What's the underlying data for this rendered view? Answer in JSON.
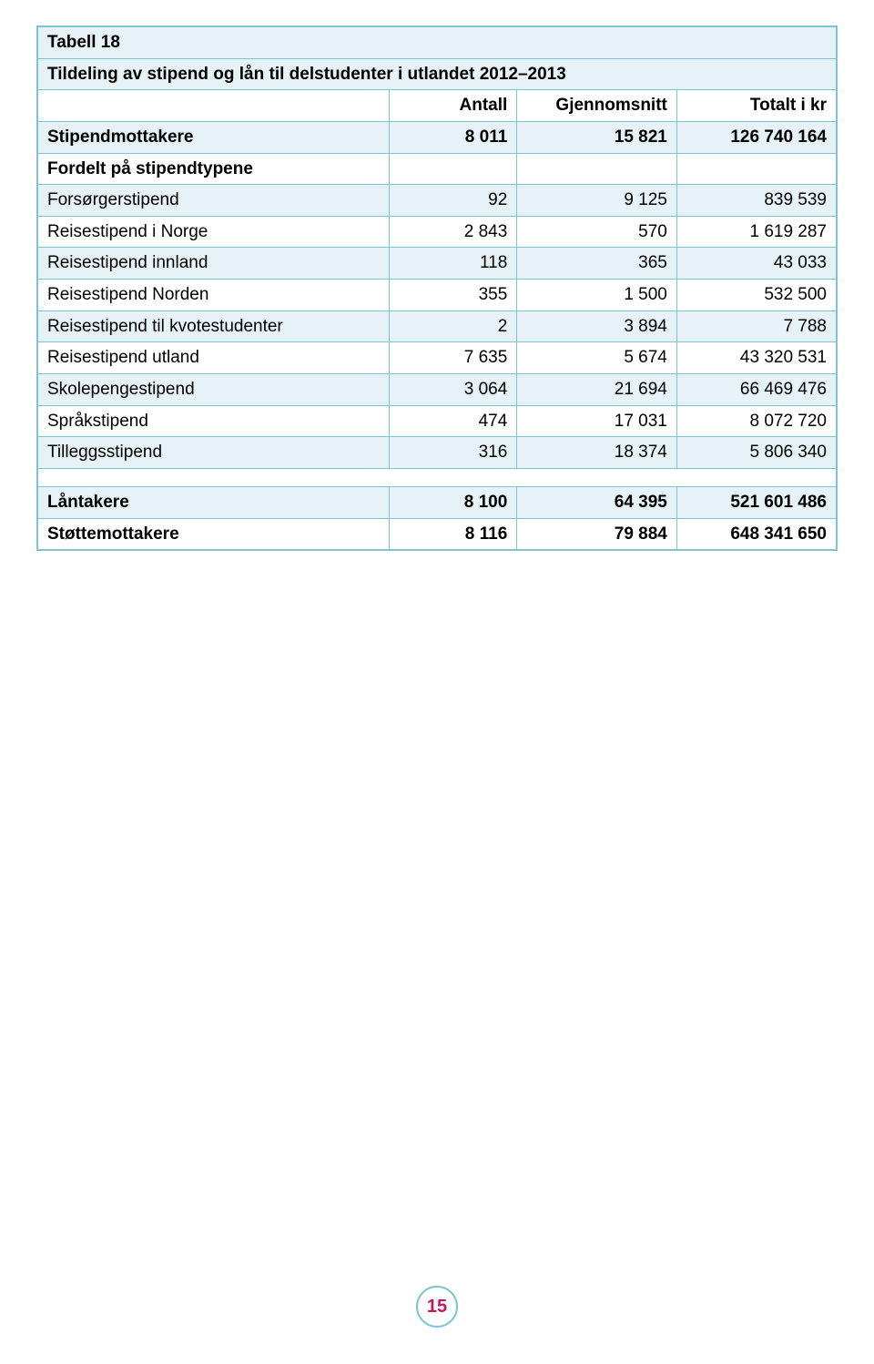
{
  "table": {
    "caption": "Tabell 18",
    "subtitle": "Tildeling av stipend og lån til delstudenter i utlandet 2012–2013",
    "columns": [
      "",
      "Antall",
      "Gjennomsnitt",
      "Totalt i kr"
    ],
    "colors": {
      "border": "#7bc4d4",
      "altRow": "#e6f2f5",
      "pageNumText": "#c2185b"
    },
    "rows": [
      {
        "label": "Stipendmottakere",
        "cells": [
          "8 011",
          "15 821",
          "126 740 164"
        ],
        "bold": true
      },
      {
        "label": "Fordelt på stipendtypene",
        "cells": [
          "",
          "",
          ""
        ],
        "bold": true
      },
      {
        "label": "Forsørgerstipend",
        "cells": [
          "92",
          "9 125",
          "839 539"
        ],
        "bold": false
      },
      {
        "label": "Reisestipend i Norge",
        "cells": [
          "2 843",
          "570",
          "1 619 287"
        ],
        "bold": false
      },
      {
        "label": "Reisestipend innland",
        "cells": [
          "118",
          "365",
          "43 033"
        ],
        "bold": false
      },
      {
        "label": "Reisestipend Norden",
        "cells": [
          "355",
          "1 500",
          "532 500"
        ],
        "bold": false
      },
      {
        "label": "Reisestipend til kvotestudenter",
        "cells": [
          "2",
          "3 894",
          "7 788"
        ],
        "bold": false
      },
      {
        "label": "Reisestipend utland",
        "cells": [
          "7 635",
          "5 674",
          "43 320 531"
        ],
        "bold": false
      },
      {
        "label": "Skolepengestipend",
        "cells": [
          "3 064",
          "21 694",
          "66 469 476"
        ],
        "bold": false
      },
      {
        "label": "Språkstipend",
        "cells": [
          "474",
          "17 031",
          "8 072 720"
        ],
        "bold": false
      },
      {
        "label": "Tilleggsstipend",
        "cells": [
          "316",
          "18 374",
          "5 806 340"
        ],
        "bold": false
      }
    ],
    "footer_rows": [
      {
        "label": "Låntakere",
        "cells": [
          "8 100",
          "64 395",
          "521 601 486"
        ],
        "bold": true
      },
      {
        "label": "Støttemottakere",
        "cells": [
          "8 116",
          "79 884",
          "648 341 650"
        ],
        "bold": true
      }
    ]
  },
  "page_number": "15"
}
